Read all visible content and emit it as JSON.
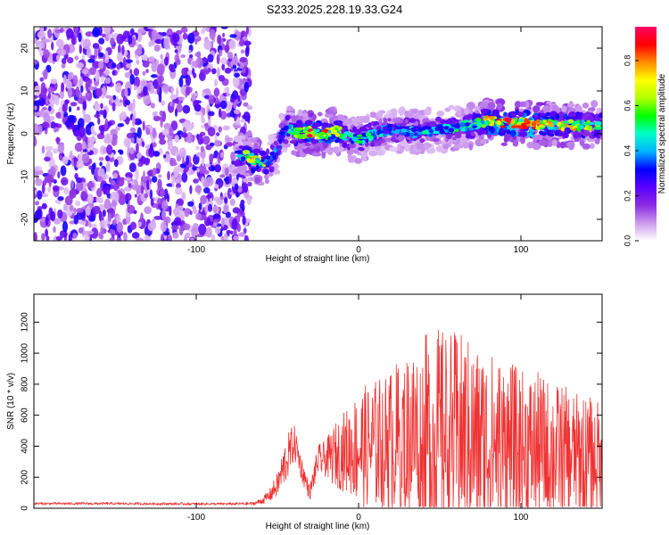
{
  "title": "S233.2025.228.19.33.G24",
  "chart_data": [
    {
      "type": "heatmap",
      "xlabel": "Height of straight line (km)",
      "ylabel": "Frequency (Hz)",
      "xlim": [
        -200,
        150
      ],
      "ylim": [
        -25,
        25
      ],
      "xticks": [
        -100,
        0,
        100
      ],
      "xtick_labels": [
        "-100",
        "0",
        "100"
      ],
      "yticks": [
        -20,
        -10,
        0,
        10,
        20
      ],
      "ytick_labels": [
        "-20",
        "-10",
        "0",
        "10",
        "20"
      ],
      "colorbar": {
        "label": "Normalized spectral amplitude",
        "range": [
          0,
          0.95
        ],
        "ticks": [
          0,
          0.2,
          0.4,
          0.6,
          0.8
        ],
        "tick_labels": [
          "0.0",
          "0.2",
          "0.4",
          "0.6",
          "0.8"
        ],
        "colormap": [
          "#ffffff",
          "#cc99ee",
          "#8a2be2",
          "#5a00ff",
          "#0000ff",
          "#00b4ff",
          "#00ffc8",
          "#00ff00",
          "#b4ff00",
          "#ffff00",
          "#ff8c00",
          "#ff0000",
          "#ff0066"
        ]
      },
      "noise_region_x": [
        -200,
        -67
      ],
      "ridge": {
        "x": [
          -75,
          -70,
          -65,
          -60,
          -55,
          -50,
          -47,
          -43,
          -40,
          -35,
          -30,
          -25,
          -20,
          -15,
          -10,
          -5,
          0,
          10,
          20,
          30,
          40,
          50,
          60,
          70,
          80,
          90,
          100,
          110,
          120,
          130,
          140,
          150
        ],
        "freq": [
          -4.5,
          -5,
          -6,
          -7,
          -6.5,
          -4,
          0,
          1.5,
          0.5,
          0,
          0.5,
          0,
          0,
          1,
          0,
          -1,
          -1.5,
          0,
          1,
          0.5,
          0.5,
          1,
          1.5,
          2,
          3,
          2.5,
          2.5,
          2,
          2,
          2,
          2,
          2
        ],
        "peak_amplitude": [
          0.5,
          0.55,
          0.75,
          0.6,
          0.45,
          0.35,
          0.3,
          0.55,
          0.65,
          0.6,
          0.85,
          0.8,
          0.75,
          0.7,
          0.55,
          0.45,
          0.5,
          0.45,
          0.4,
          0.45,
          0.45,
          0.4,
          0.5,
          0.5,
          0.75,
          0.8,
          0.85,
          0.8,
          0.7,
          0.75,
          0.6,
          0.55
        ]
      }
    },
    {
      "type": "line",
      "xlabel": "Height of straight line (km)",
      "ylabel": "SNR (10 * v/v)",
      "xlim": [
        -200,
        150
      ],
      "ylim": [
        0,
        1380
      ],
      "xticks": [
        -100,
        0,
        100
      ],
      "xtick_labels": [
        "-100",
        "0",
        "100"
      ],
      "yticks": [
        0,
        200,
        400,
        600,
        800,
        1000,
        1200
      ],
      "ytick_labels": [
        "0",
        "200",
        "400",
        "600",
        "800",
        "1000",
        "1200"
      ],
      "series": [
        {
          "name": "SNR",
          "color": "#ee3333",
          "x": [
            -200,
            -150,
            -100,
            -80,
            -65,
            -60,
            -55,
            -50,
            -45,
            -40,
            -38,
            -35,
            -30,
            -25,
            -20,
            -15,
            -10,
            -5,
            0,
            5,
            10,
            15,
            20,
            25,
            30,
            35,
            40,
            45,
            50,
            55,
            60,
            65,
            70,
            75,
            80,
            85,
            90,
            95,
            100,
            105,
            110,
            115,
            120,
            125,
            130,
            135,
            140,
            145,
            150
          ],
          "mean": [
            30,
            30,
            28,
            28,
            30,
            45,
            80,
            150,
            300,
            420,
            380,
            250,
            100,
            310,
            320,
            340,
            360,
            380,
            390,
            400,
            410,
            420,
            430,
            440,
            460,
            480,
            480,
            470,
            470,
            450,
            460,
            460,
            440,
            420,
            420,
            420,
            400,
            390,
            380,
            380,
            380,
            370,
            360,
            360,
            350,
            340,
            330,
            330,
            320
          ],
          "amplitude": [
            8,
            8,
            8,
            8,
            10,
            20,
            40,
            80,
            150,
            130,
            100,
            80,
            50,
            100,
            120,
            200,
            250,
            300,
            380,
            400,
            420,
            450,
            480,
            520,
            560,
            600,
            640,
            680,
            700,
            700,
            680,
            660,
            640,
            620,
            600,
            580,
            560,
            540,
            520,
            500,
            500,
            480,
            460,
            440,
            420,
            400,
            400,
            380,
            360
          ]
        }
      ]
    }
  ]
}
